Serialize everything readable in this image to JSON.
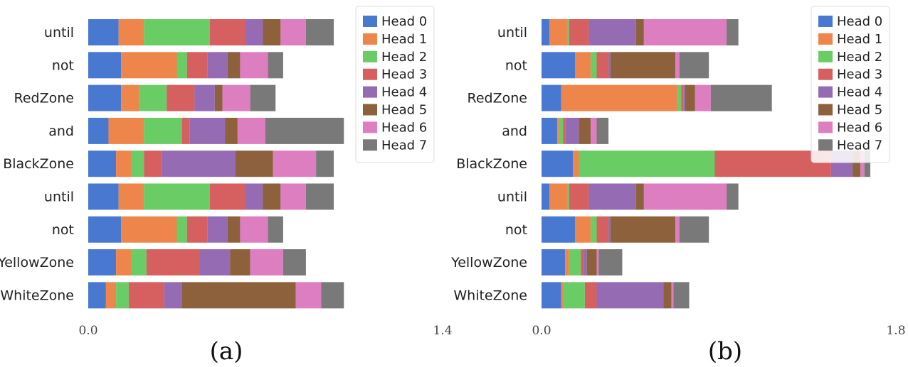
{
  "colors": [
    "#4878d0",
    "#ee854a",
    "#6acc64",
    "#d65f5f",
    "#956cb4",
    "#8c613c",
    "#dc7ec0",
    "#797979"
  ],
  "chart_data": [
    {
      "type": "bar",
      "orientation": "horizontal",
      "stacked": true,
      "panel_label": "(a)",
      "xlim": [
        0.0,
        1.4
      ],
      "xticks": [
        "0.0",
        "1.4"
      ],
      "categories": [
        "until",
        "not",
        "RedZone",
        "and",
        "BlackZone",
        "until",
        "not",
        "YellowZone",
        "WhiteZone"
      ],
      "legend": {
        "placement": "top-right",
        "entries": [
          "Head 0",
          "Head 1",
          "Head 2",
          "Head 3",
          "Head 4",
          "Head 5",
          "Head 6",
          "Head 7"
        ]
      },
      "series": [
        {
          "name": "Head 0",
          "values": [
            0.12,
            0.13,
            0.13,
            0.08,
            0.11,
            0.12,
            0.13,
            0.11,
            0.07
          ]
        },
        {
          "name": "Head 1",
          "values": [
            0.1,
            0.22,
            0.07,
            0.14,
            0.06,
            0.1,
            0.22,
            0.06,
            0.04
          ]
        },
        {
          "name": "Head 2",
          "values": [
            0.26,
            0.04,
            0.11,
            0.15,
            0.05,
            0.26,
            0.04,
            0.06,
            0.05
          ]
        },
        {
          "name": "Head 3",
          "values": [
            0.14,
            0.08,
            0.11,
            0.03,
            0.07,
            0.14,
            0.08,
            0.21,
            0.14
          ]
        },
        {
          "name": "Head 4",
          "values": [
            0.07,
            0.08,
            0.08,
            0.14,
            0.29,
            0.07,
            0.08,
            0.12,
            0.07
          ]
        },
        {
          "name": "Head 5",
          "values": [
            0.07,
            0.05,
            0.03,
            0.05,
            0.15,
            0.07,
            0.05,
            0.08,
            0.45
          ]
        },
        {
          "name": "Head 6",
          "values": [
            0.1,
            0.11,
            0.11,
            0.11,
            0.17,
            0.1,
            0.11,
            0.13,
            0.1
          ]
        },
        {
          "name": "Head 7",
          "values": [
            0.11,
            0.06,
            0.1,
            0.31,
            0.07,
            0.11,
            0.06,
            0.09,
            0.09
          ]
        }
      ]
    },
    {
      "type": "bar",
      "orientation": "horizontal",
      "stacked": true,
      "panel_label": "(b)",
      "xlim": [
        0.0,
        1.8
      ],
      "xticks": [
        "0.0",
        "1.8"
      ],
      "categories": [
        "until",
        "not",
        "RedZone",
        "and",
        "BlackZone",
        "until",
        "not",
        "YellowZone",
        "WhiteZone"
      ],
      "legend": {
        "placement": "top-right",
        "entries": [
          "Head 0",
          "Head 1",
          "Head 2",
          "Head 3",
          "Head 4",
          "Head 5",
          "Head 6",
          "Head 7"
        ]
      },
      "series": [
        {
          "name": "Head 0",
          "values": [
            0.04,
            0.17,
            0.1,
            0.08,
            0.16,
            0.04,
            0.17,
            0.12,
            0.1
          ]
        },
        {
          "name": "Head 1",
          "values": [
            0.09,
            0.08,
            0.59,
            0.01,
            0.03,
            0.09,
            0.08,
            0.02,
            0.01
          ]
        },
        {
          "name": "Head 2",
          "values": [
            0.01,
            0.03,
            0.02,
            0.02,
            0.69,
            0.01,
            0.03,
            0.06,
            0.11
          ]
        },
        {
          "name": "Head 3",
          "values": [
            0.1,
            0.06,
            0.01,
            0.01,
            0.59,
            0.1,
            0.06,
            0.01,
            0.06
          ]
        },
        {
          "name": "Head 4",
          "values": [
            0.24,
            0.01,
            0.01,
            0.07,
            0.11,
            0.24,
            0.01,
            0.02,
            0.34
          ]
        },
        {
          "name": "Head 5",
          "values": [
            0.04,
            0.33,
            0.05,
            0.06,
            0.04,
            0.04,
            0.33,
            0.05,
            0.04
          ]
        },
        {
          "name": "Head 6",
          "values": [
            0.42,
            0.02,
            0.08,
            0.03,
            0.02,
            0.42,
            0.02,
            0.01,
            0.01
          ]
        },
        {
          "name": "Head 7",
          "values": [
            0.06,
            0.15,
            0.31,
            0.06,
            0.03,
            0.06,
            0.15,
            0.12,
            0.08
          ]
        }
      ]
    }
  ]
}
